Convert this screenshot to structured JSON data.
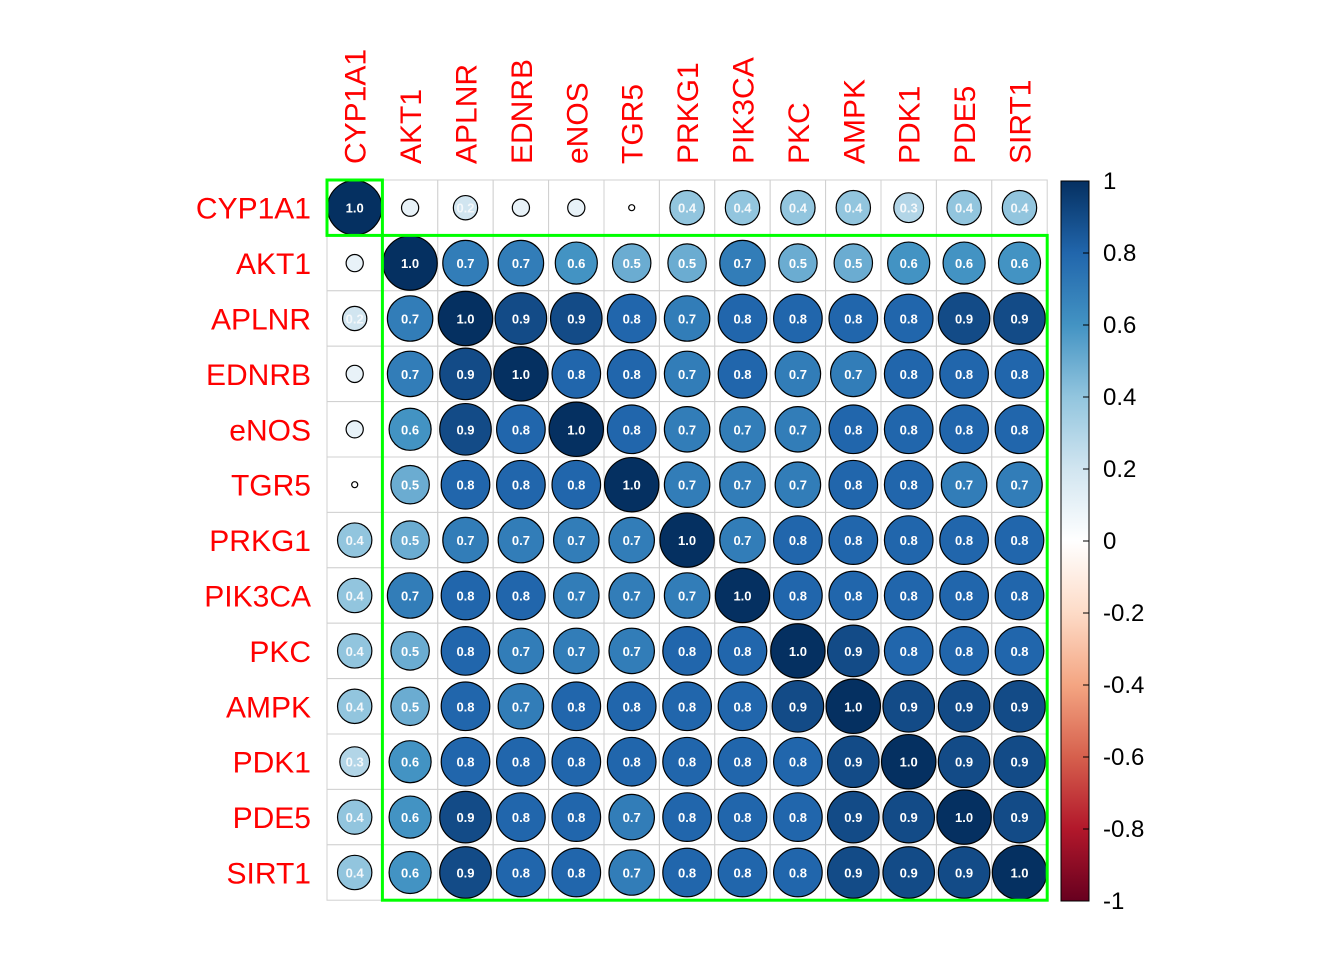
{
  "chart_data": {
    "type": "heatmap",
    "style": "correlation-circles",
    "variables": [
      "CYP1A1",
      "AKT1",
      "APLNR",
      "EDNRB",
      "eNOS",
      "TGR5",
      "PRKG1",
      "PIK3CA",
      "PKC",
      "AMPK",
      "PDK1",
      "PDE5",
      "SIRT1"
    ],
    "matrix": [
      [
        1.0,
        0.1,
        0.2,
        0.1,
        0.1,
        0.0,
        0.4,
        0.4,
        0.4,
        0.4,
        0.3,
        0.4,
        0.4
      ],
      [
        0.1,
        1.0,
        0.7,
        0.7,
        0.6,
        0.5,
        0.5,
        0.7,
        0.5,
        0.5,
        0.6,
        0.6,
        0.6
      ],
      [
        0.2,
        0.7,
        1.0,
        0.9,
        0.9,
        0.8,
        0.7,
        0.8,
        0.8,
        0.8,
        0.8,
        0.9,
        0.9
      ],
      [
        0.1,
        0.7,
        0.9,
        1.0,
        0.8,
        0.8,
        0.7,
        0.8,
        0.7,
        0.7,
        0.8,
        0.8,
        0.8
      ],
      [
        0.1,
        0.6,
        0.9,
        0.8,
        1.0,
        0.8,
        0.7,
        0.7,
        0.7,
        0.8,
        0.8,
        0.8,
        0.8
      ],
      [
        0.0,
        0.5,
        0.8,
        0.8,
        0.8,
        1.0,
        0.7,
        0.7,
        0.7,
        0.8,
        0.8,
        0.7,
        0.7
      ],
      [
        0.4,
        0.5,
        0.7,
        0.7,
        0.7,
        0.7,
        1.0,
        0.7,
        0.8,
        0.8,
        0.8,
        0.8,
        0.8
      ],
      [
        0.4,
        0.7,
        0.8,
        0.8,
        0.7,
        0.7,
        0.7,
        1.0,
        0.8,
        0.8,
        0.8,
        0.8,
        0.8
      ],
      [
        0.4,
        0.5,
        0.8,
        0.7,
        0.7,
        0.7,
        0.8,
        0.8,
        1.0,
        0.9,
        0.8,
        0.8,
        0.8
      ],
      [
        0.4,
        0.5,
        0.8,
        0.7,
        0.8,
        0.8,
        0.8,
        0.8,
        0.9,
        1.0,
        0.9,
        0.9,
        0.9
      ],
      [
        0.3,
        0.6,
        0.8,
        0.8,
        0.8,
        0.8,
        0.8,
        0.8,
        0.8,
        0.9,
        1.0,
        0.9,
        0.9
      ],
      [
        0.4,
        0.6,
        0.9,
        0.8,
        0.8,
        0.7,
        0.8,
        0.8,
        0.8,
        0.9,
        0.9,
        1.0,
        0.9
      ],
      [
        0.4,
        0.6,
        0.9,
        0.8,
        0.8,
        0.7,
        0.8,
        0.8,
        0.8,
        0.9,
        0.9,
        0.9,
        1.0
      ]
    ],
    "show_value_text_threshold": 0.15,
    "value_range": [
      -1,
      1
    ],
    "colorbar": {
      "ticks": [
        "1",
        "0.8",
        "0.6",
        "0.4",
        "0.2",
        "0",
        "-0.2",
        "-0.4",
        "-0.6",
        "-0.8",
        "-1"
      ],
      "colors": {
        "neg": "#67001F",
        "mid": "#FFFFFF",
        "pos": "#053061"
      }
    },
    "label_color": "#FF0000",
    "cluster_boxes": [
      {
        "start": 0,
        "end": 0
      },
      {
        "start": 1,
        "end": 12
      }
    ],
    "cluster_box_color": "#00FF00",
    "grid": true,
    "legend_position": "right"
  }
}
